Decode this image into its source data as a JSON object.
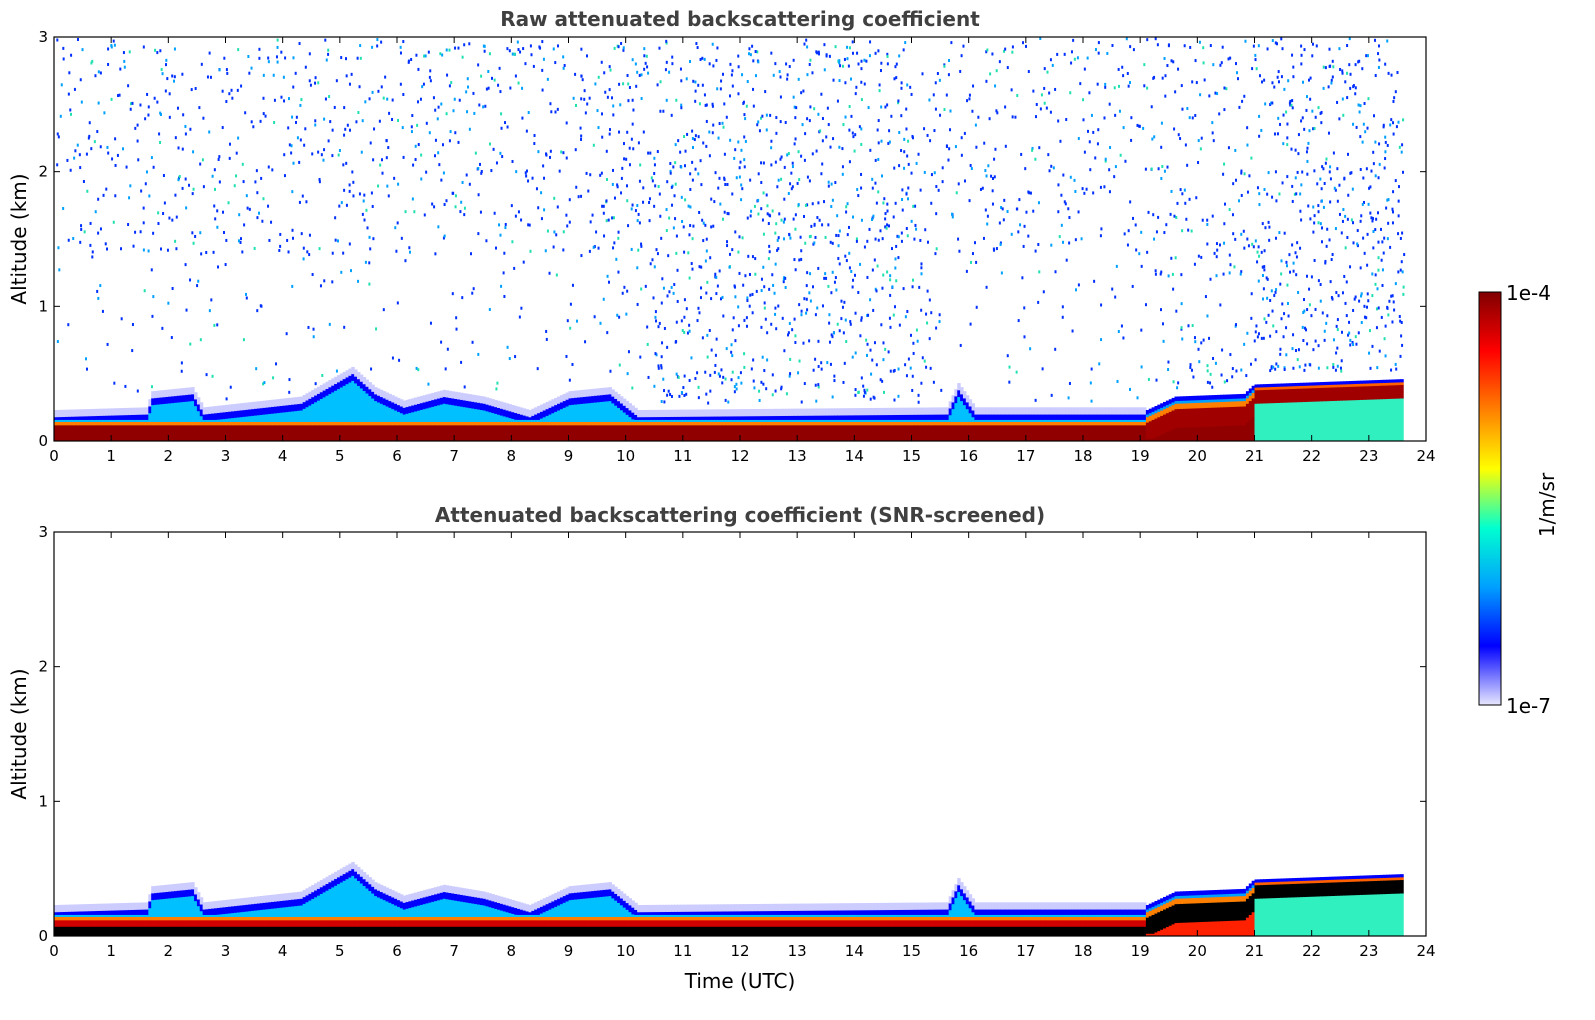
{
  "chart_data": [
    {
      "type": "heatmap",
      "title": "Raw attenuated backscattering coefficient",
      "xlabel": "",
      "ylabel": "Altitude (km)",
      "xlim": [
        0,
        24
      ],
      "ylim": [
        0,
        3
      ],
      "x_ticks": [
        "0",
        "1",
        "2",
        "3",
        "4",
        "5",
        "6",
        "7",
        "8",
        "9",
        "10",
        "11",
        "12",
        "13",
        "14",
        "15",
        "16",
        "17",
        "18",
        "19",
        "20",
        "21",
        "22",
        "23",
        "24"
      ],
      "y_ticks": [
        "0",
        "1",
        "2",
        "3"
      ],
      "data_end_time": 23.6,
      "colorscale": "jet",
      "color_log_range": [
        1e-07,
        0.0001
      ],
      "features": {
        "noise_above_boundary_layer": true,
        "strong_surface_layer_top_km": 0.12,
        "boundary_layer_top_km": [
          [
            0,
            0.18
          ],
          [
            1.6,
            0.2
          ],
          [
            1.7,
            0.32
          ],
          [
            2.4,
            0.35
          ],
          [
            2.6,
            0.2
          ],
          [
            4.3,
            0.28
          ],
          [
            5.2,
            0.5
          ],
          [
            5.6,
            0.35
          ],
          [
            6.1,
            0.25
          ],
          [
            6.8,
            0.33
          ],
          [
            7.5,
            0.28
          ],
          [
            8.3,
            0.18
          ],
          [
            9.0,
            0.32
          ],
          [
            9.7,
            0.35
          ],
          [
            10.2,
            0.18
          ],
          [
            15.6,
            0.2
          ],
          [
            15.8,
            0.38
          ],
          [
            16.1,
            0.2
          ],
          [
            19.1,
            0.2
          ],
          [
            19.6,
            0.3
          ],
          [
            20.8,
            0.32
          ],
          [
            21.0,
            0.4
          ],
          [
            23.6,
            0.44
          ]
        ]
      }
    },
    {
      "type": "heatmap",
      "title": "Attenuated backscattering coefficient (SNR-screened)",
      "xlabel": "Time (UTC)",
      "ylabel": "Altitude (km)",
      "xlim": [
        0,
        24
      ],
      "ylim": [
        0,
        3
      ],
      "x_ticks": [
        "0",
        "1",
        "2",
        "3",
        "4",
        "5",
        "6",
        "7",
        "8",
        "9",
        "10",
        "11",
        "12",
        "13",
        "14",
        "15",
        "16",
        "17",
        "18",
        "19",
        "20",
        "21",
        "22",
        "23",
        "24"
      ],
      "y_ticks": [
        "0",
        "1",
        "2",
        "3"
      ],
      "data_end_time": 23.6,
      "colorscale": "jet",
      "color_log_range": [
        1e-07,
        0.0001
      ],
      "features": {
        "noise_above_boundary_layer": false,
        "saturated_near_surface_black": true
      }
    }
  ],
  "colorbar": {
    "label": "1/m/sr",
    "max_label": "1e-4",
    "min_label": "1e-7",
    "stops": [
      "#e8e8ff",
      "#0000ff",
      "#00a0ff",
      "#00ffd0",
      "#ffff00",
      "#ff8000",
      "#ff0000",
      "#800000"
    ]
  }
}
